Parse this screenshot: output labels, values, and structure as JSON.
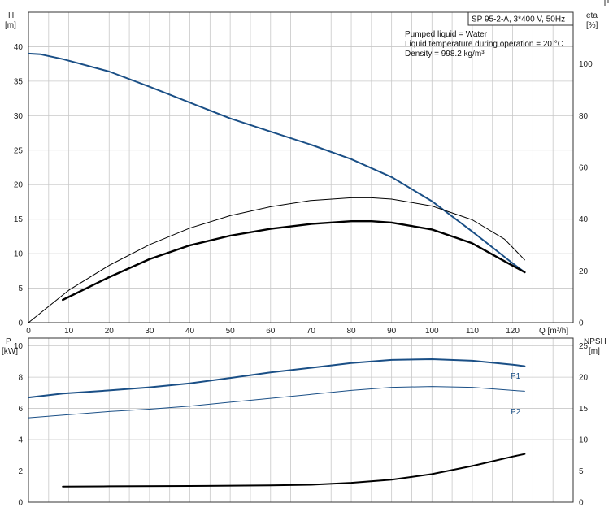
{
  "legend_box": "SP 95-2-A, 3*400 V, 50Hz",
  "info_lines": [
    "Pumped liquid = Water",
    "Liquid temperature during operation = 20 °C",
    "Density = 998.2 kg/m³"
  ],
  "colors": {
    "blue": "#1a4f86",
    "black": "#000000",
    "grid": "#c8c8c8"
  },
  "chart_data": [
    {
      "type": "line",
      "xlabel": "Q [m³/h]",
      "x_ticks": [
        0,
        10,
        20,
        30,
        40,
        50,
        60,
        70,
        80,
        90,
        100,
        110,
        120
      ],
      "xlim": [
        0,
        135
      ],
      "ylabel_left": "H",
      "ylabel_left_unit": "[m]",
      "ylim_left": [
        0,
        45
      ],
      "yticks_left": [
        0,
        5,
        10,
        15,
        20,
        25,
        30,
        35,
        40
      ],
      "ylabel_right": "eta",
      "ylabel_right_unit": "[%]",
      "ylim_right": [
        0,
        120
      ],
      "yticks_right": [
        0,
        20,
        40,
        60,
        80,
        100
      ],
      "grid": true,
      "series": [
        {
          "axis": "left",
          "color": "blue",
          "width": 2,
          "points": [
            [
              0,
              39
            ],
            [
              3,
              38.9
            ],
            [
              8.5,
              38.2
            ],
            [
              20,
              36.4
            ],
            [
              30,
              34.2
            ],
            [
              40,
              31.9
            ],
            [
              50,
              29.6
            ],
            [
              60,
              27.7
            ],
            [
              70,
              25.8
            ],
            [
              80,
              23.7
            ],
            [
              90,
              21.1
            ],
            [
              100,
              17.6
            ],
            [
              110,
              13.2
            ],
            [
              120,
              8.6
            ],
            [
              123,
              7.3
            ]
          ]
        },
        {
          "axis": "left",
          "color": "black",
          "width": 1,
          "points": [
            [
              0,
              0
            ],
            [
              10,
              4.7
            ],
            [
              20,
              8.3
            ],
            [
              30,
              11.3
            ],
            [
              40,
              13.7
            ],
            [
              50,
              15.5
            ],
            [
              60,
              16.8
            ],
            [
              70,
              17.7
            ],
            [
              80,
              18.1
            ],
            [
              85,
              18.1
            ],
            [
              90,
              17.9
            ],
            [
              100,
              16.9
            ],
            [
              110,
              14.9
            ],
            [
              118,
              12.1
            ],
            [
              123,
              9.1
            ]
          ]
        },
        {
          "axis": "left",
          "color": "black",
          "width": 2.4,
          "points": [
            [
              8.5,
              3.3
            ],
            [
              20,
              6.6
            ],
            [
              30,
              9.2
            ],
            [
              40,
              11.2
            ],
            [
              50,
              12.6
            ],
            [
              60,
              13.6
            ],
            [
              70,
              14.3
            ],
            [
              80,
              14.7
            ],
            [
              85,
              14.7
            ],
            [
              90,
              14.5
            ],
            [
              100,
              13.5
            ],
            [
              110,
              11.5
            ],
            [
              118,
              8.9
            ],
            [
              123,
              7.3
            ]
          ]
        }
      ]
    },
    {
      "type": "line",
      "ylabel_left": "P",
      "ylabel_left_unit": "[kW]",
      "ylim_left": [
        0,
        10.5
      ],
      "yticks_left": [
        0,
        2,
        4,
        6,
        8,
        10
      ],
      "ylabel_right": "NPSH",
      "ylabel_right_unit": "[m]",
      "ylim_right": [
        0,
        26.25
      ],
      "yticks_right": [
        0,
        5,
        10,
        15,
        20,
        25
      ],
      "grid": true,
      "series": [
        {
          "name": "P1",
          "axis": "left",
          "color": "blue",
          "width": 2,
          "points": [
            [
              0,
              6.7
            ],
            [
              8.5,
              6.95
            ],
            [
              20,
              7.15
            ],
            [
              30,
              7.35
            ],
            [
              40,
              7.6
            ],
            [
              50,
              7.95
            ],
            [
              60,
              8.3
            ],
            [
              70,
              8.6
            ],
            [
              80,
              8.9
            ],
            [
              90,
              9.1
            ],
            [
              100,
              9.15
            ],
            [
              110,
              9.05
            ],
            [
              120,
              8.8
            ],
            [
              123,
              8.7
            ]
          ]
        },
        {
          "name": "P2",
          "axis": "left",
          "color": "blue",
          "width": 1,
          "points": [
            [
              0,
              5.4
            ],
            [
              10,
              5.6
            ],
            [
              20,
              5.8
            ],
            [
              30,
              5.95
            ],
            [
              40,
              6.15
            ],
            [
              50,
              6.4
            ],
            [
              60,
              6.65
            ],
            [
              70,
              6.9
            ],
            [
              80,
              7.15
            ],
            [
              90,
              7.35
            ],
            [
              100,
              7.4
            ],
            [
              110,
              7.35
            ],
            [
              120,
              7.15
            ],
            [
              123,
              7.1
            ]
          ]
        },
        {
          "axis": "right",
          "color": "black",
          "width": 2,
          "points": [
            [
              8.5,
              2.5
            ],
            [
              20,
              2.55
            ],
            [
              40,
              2.6
            ],
            [
              60,
              2.7
            ],
            [
              70,
              2.8
            ],
            [
              80,
              3.1
            ],
            [
              90,
              3.6
            ],
            [
              100,
              4.5
            ],
            [
              110,
              5.8
            ],
            [
              120,
              7.3
            ],
            [
              123,
              7.7
            ]
          ]
        }
      ]
    }
  ]
}
